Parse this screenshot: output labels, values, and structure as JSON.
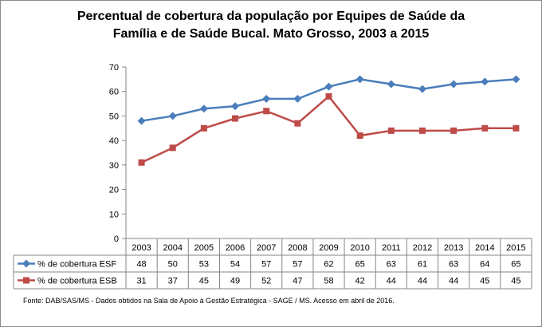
{
  "chart_data": {
    "type": "line",
    "title_line1": "Percentual de cobertura da população por Equipes de Saúde da",
    "title_line2": "Família e de Saúde Bucal. Mato Grosso, 2003 a 2015",
    "categories": [
      "2003",
      "2004",
      "2005",
      "2006",
      "2007",
      "2008",
      "2009",
      "2010",
      "2011",
      "2012",
      "2013",
      "2014",
      "2015"
    ],
    "series": [
      {
        "name": "% de cobertura ESF",
        "values": [
          48,
          50,
          53,
          54,
          57,
          57,
          62,
          65,
          63,
          61,
          63,
          64,
          65
        ],
        "color": "#4a7ebb",
        "marker": "diamond"
      },
      {
        "name": "% de cobertura ESB",
        "values": [
          31,
          37,
          45,
          49,
          52,
          47,
          58,
          42,
          44,
          44,
          44,
          45,
          45
        ],
        "color": "#be4b48",
        "marker": "square"
      }
    ],
    "ylim": [
      0,
      70
    ],
    "yticks": [
      0,
      10,
      20,
      30,
      40,
      50,
      60,
      70
    ],
    "grid": false,
    "legend": "data-table-below",
    "source": "Fonte:  DAB/SAS/MS - Dados obtidos na Sala de Apoio à Gestão Estratégica - SAGE / MS. Acesso em abril de 2016."
  }
}
